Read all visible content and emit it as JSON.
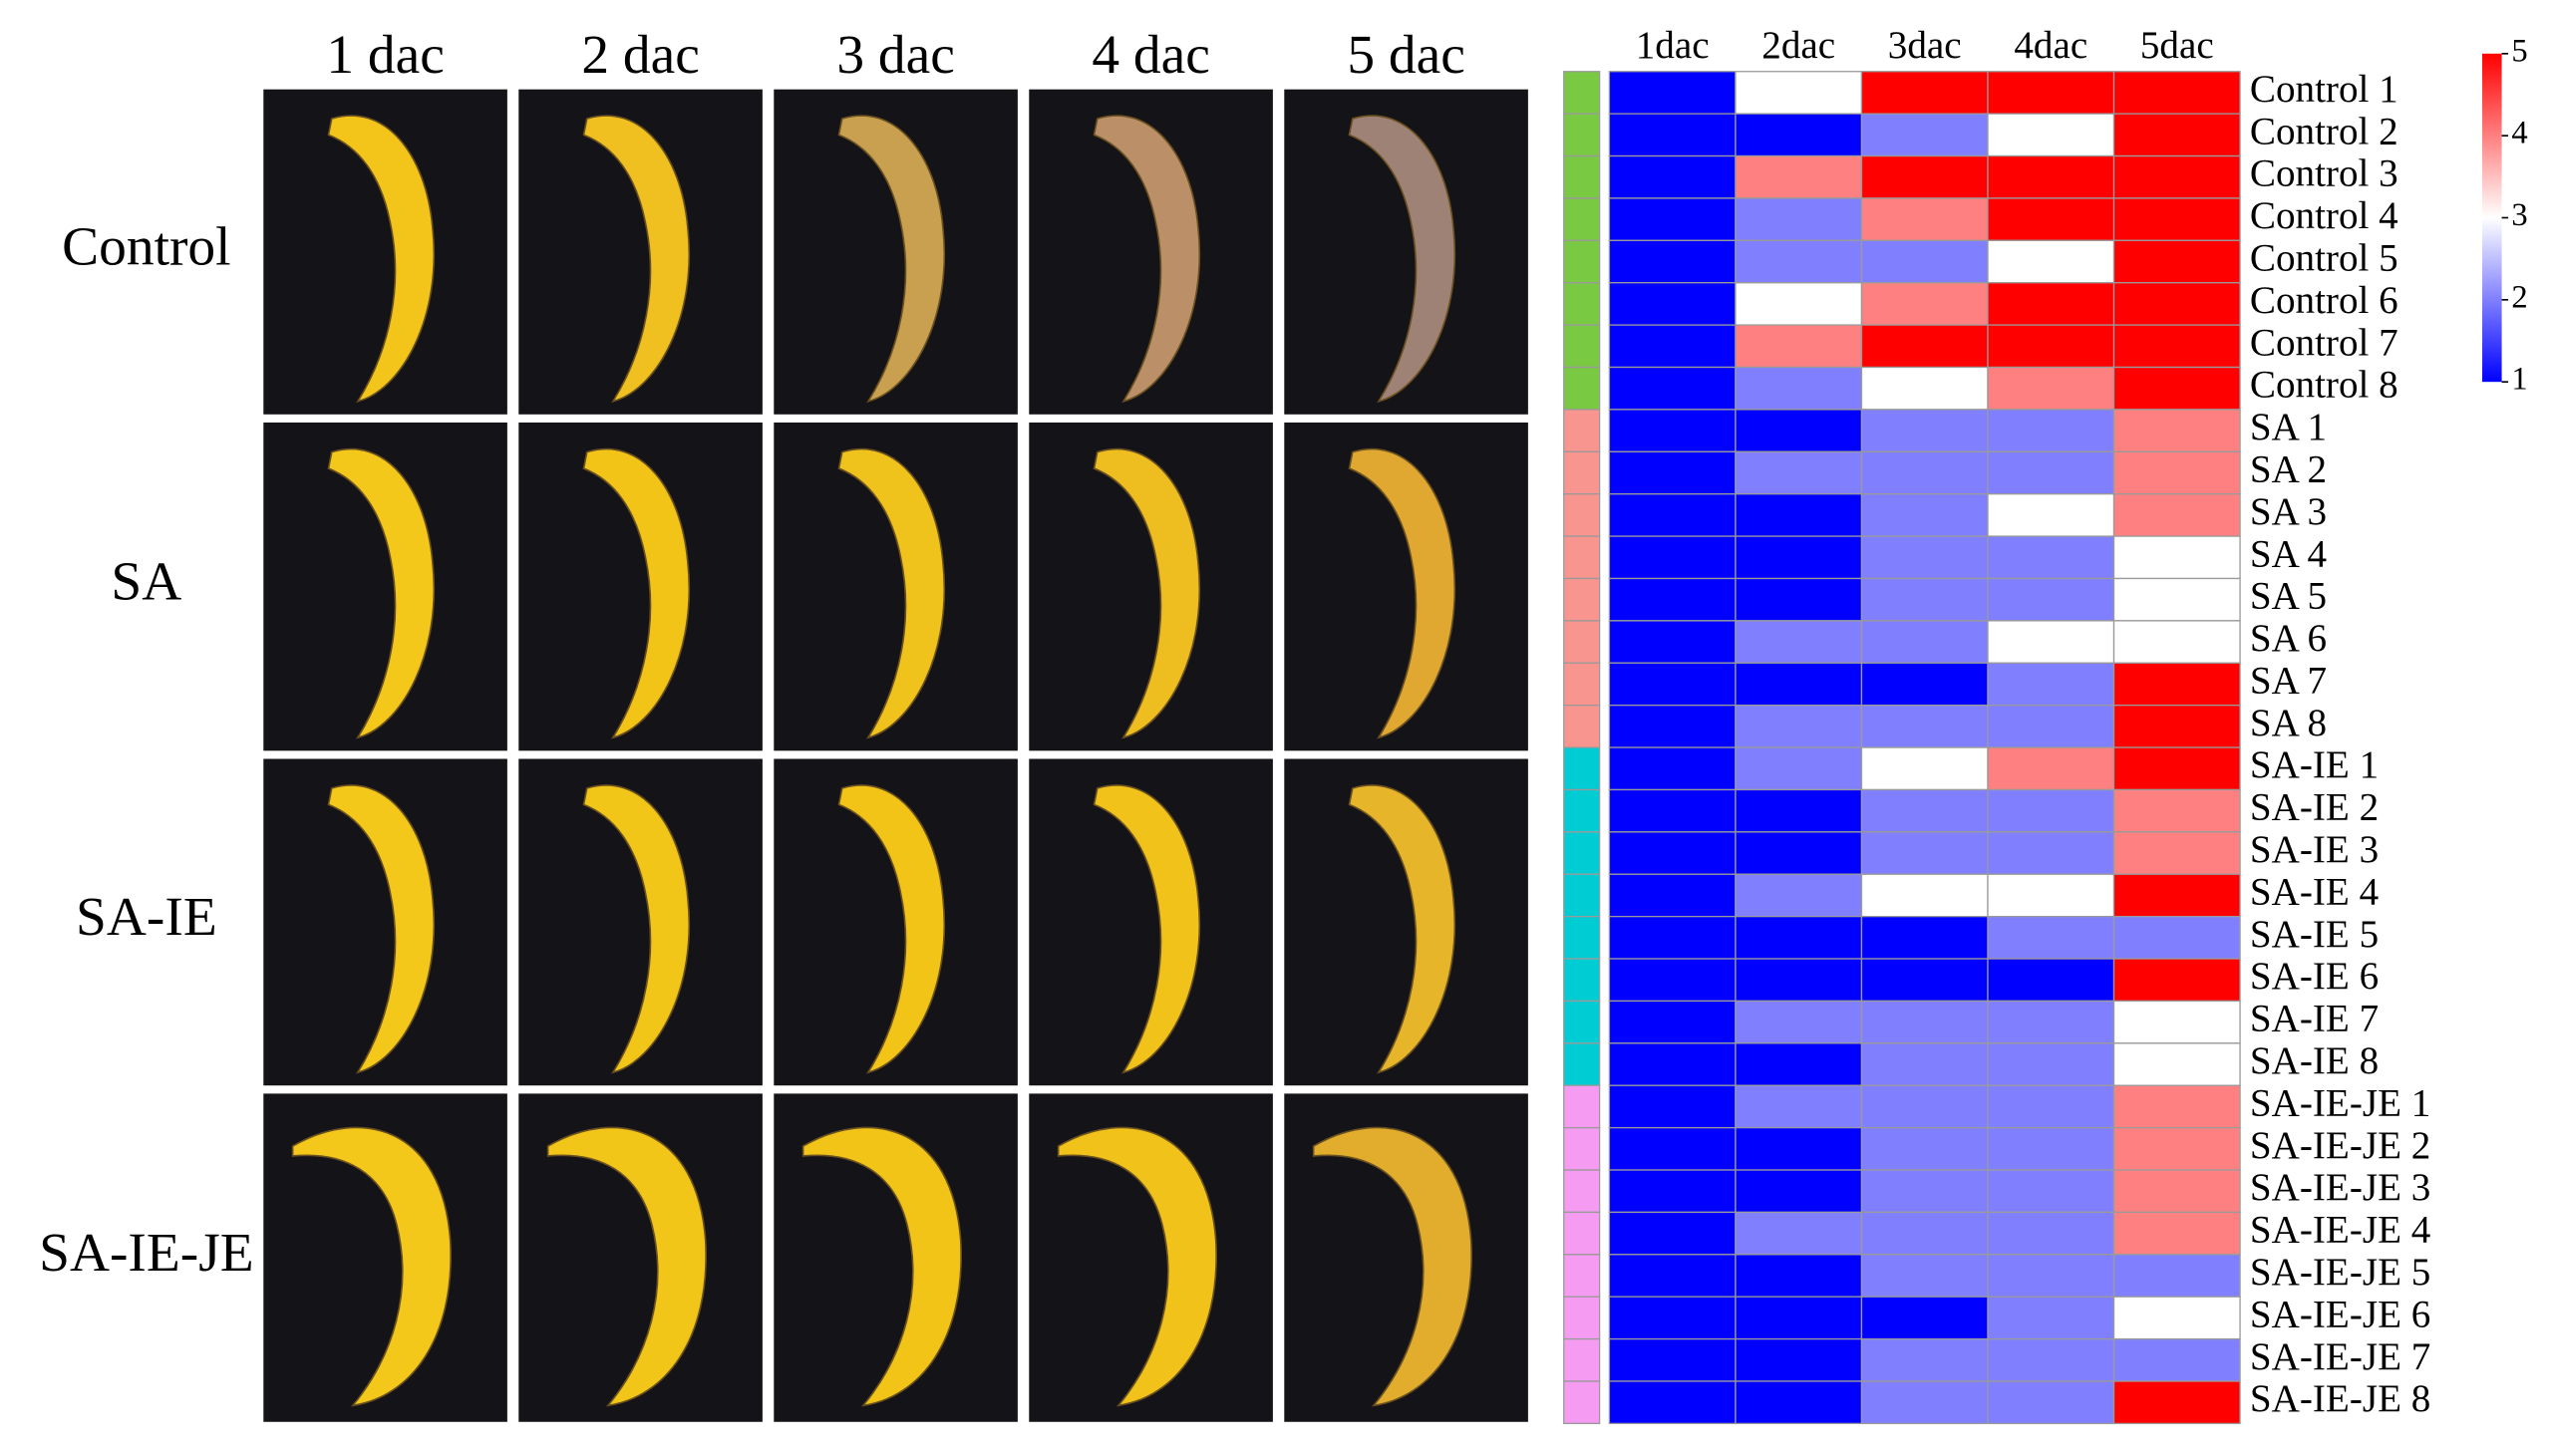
{
  "photo_panel": {
    "columns": [
      "1 dac",
      "2 dac",
      "3 dac",
      "4 dac",
      "5 dac"
    ],
    "rows": [
      "Control",
      "SA",
      "SA-IE",
      "SA-IE-JE"
    ]
  },
  "chart_data": {
    "type": "heatmap",
    "columns": [
      "1dac",
      "2dac",
      "3dac",
      "4dac",
      "5dac"
    ],
    "rows": [
      "Control 1",
      "Control 2",
      "Control 3",
      "Control 4",
      "Control 5",
      "Control 6",
      "Control 7",
      "Control 8",
      "SA 1",
      "SA 2",
      "SA 3",
      "SA 4",
      "SA 5",
      "SA 6",
      "SA 7",
      "SA 8",
      "SA-IE 1",
      "SA-IE 2",
      "SA-IE 3",
      "SA-IE 4",
      "SA-IE 5",
      "SA-IE 6",
      "SA-IE 7",
      "SA-IE 8",
      "SA-IE-JE 1",
      "SA-IE-JE 2",
      "SA-IE-JE 3",
      "SA-IE-JE 4",
      "SA-IE-JE 5",
      "SA-IE-JE 6",
      "SA-IE-JE 7",
      "SA-IE-JE 8"
    ],
    "values": [
      [
        1,
        3,
        5,
        5,
        5
      ],
      [
        1,
        1,
        2,
        3,
        5
      ],
      [
        1,
        4,
        5,
        5,
        5
      ],
      [
        1,
        2,
        4,
        5,
        5
      ],
      [
        1,
        2,
        2,
        3,
        5
      ],
      [
        1,
        3,
        4,
        5,
        5
      ],
      [
        1,
        4,
        5,
        5,
        5
      ],
      [
        1,
        2,
        3,
        4,
        5
      ],
      [
        1,
        1,
        2,
        2,
        4
      ],
      [
        1,
        2,
        2,
        2,
        4
      ],
      [
        1,
        1,
        2,
        3,
        4
      ],
      [
        1,
        1,
        2,
        2,
        3
      ],
      [
        1,
        1,
        2,
        2,
        3
      ],
      [
        1,
        2,
        2,
        3,
        3
      ],
      [
        1,
        1,
        1,
        2,
        5
      ],
      [
        1,
        2,
        2,
        2,
        5
      ],
      [
        1,
        2,
        3,
        4,
        5
      ],
      [
        1,
        1,
        2,
        2,
        4
      ],
      [
        1,
        1,
        2,
        2,
        4
      ],
      [
        1,
        2,
        3,
        3,
        5
      ],
      [
        1,
        1,
        1,
        2,
        2
      ],
      [
        1,
        1,
        1,
        1,
        5
      ],
      [
        1,
        2,
        2,
        2,
        3
      ],
      [
        1,
        1,
        2,
        2,
        3
      ],
      [
        1,
        2,
        2,
        2,
        4
      ],
      [
        1,
        1,
        2,
        2,
        4
      ],
      [
        1,
        1,
        2,
        2,
        4
      ],
      [
        1,
        2,
        2,
        2,
        4
      ],
      [
        1,
        1,
        2,
        2,
        2
      ],
      [
        1,
        1,
        1,
        2,
        3
      ],
      [
        1,
        1,
        2,
        2,
        2
      ],
      [
        1,
        1,
        2,
        2,
        5
      ]
    ],
    "row_annotation_colors": [
      "#7ac943",
      "#7ac943",
      "#7ac943",
      "#7ac943",
      "#7ac943",
      "#7ac943",
      "#7ac943",
      "#7ac943",
      "#f9958f",
      "#f9958f",
      "#f9958f",
      "#f9958f",
      "#f9958f",
      "#f9958f",
      "#f9958f",
      "#f9958f",
      "#00ccd3",
      "#00ccd3",
      "#00ccd3",
      "#00ccd3",
      "#00ccd3",
      "#00ccd3",
      "#00ccd3",
      "#00ccd3",
      "#f59cf2",
      "#f59cf2",
      "#f59cf2",
      "#f59cf2",
      "#f59cf2",
      "#f59cf2",
      "#f59cf2",
      "#f59cf2"
    ],
    "zlim": [
      1,
      5
    ],
    "colors": [
      "#0000ff",
      "#ffffff",
      "#ff0000"
    ],
    "colorbar_ticks": [
      1,
      2,
      3,
      4,
      5
    ]
  }
}
